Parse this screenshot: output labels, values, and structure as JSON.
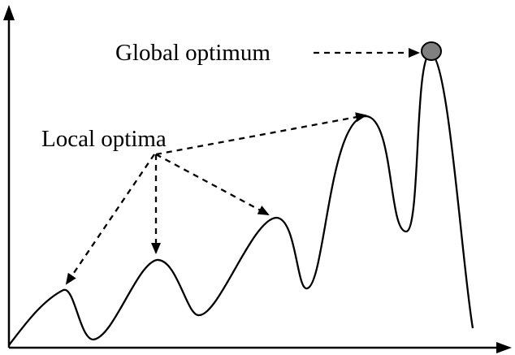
{
  "labels": {
    "global": "Global optimum",
    "local": "Local optima"
  },
  "colors": {
    "curve": "#000000",
    "arrows": "#000000",
    "axes": "#000000",
    "global_marker_fill": "#808080"
  }
}
